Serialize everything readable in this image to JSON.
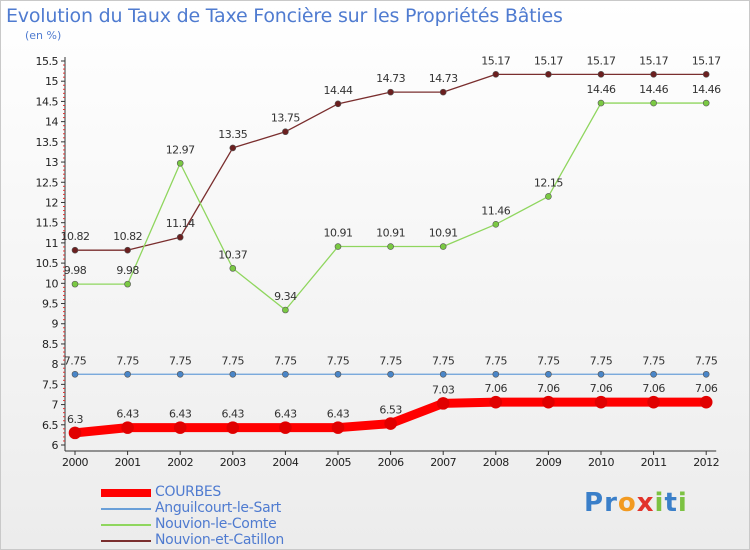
{
  "title": "Evolution du Taux de Taxe Foncière sur les Propriétés Bâties",
  "unit": "(en %)",
  "logo": {
    "letters": [
      "P",
      "r",
      "o",
      "x",
      "i",
      "t",
      "i"
    ],
    "colors": [
      "#3a7fc9",
      "#3a7fc9",
      "#f29a21",
      "#e2332b",
      "#7cc242",
      "#3a7fc9",
      "#7cc242"
    ]
  },
  "chart_data": {
    "type": "line",
    "title": "Evolution du Taux de Taxe Foncière sur les Propriétés Bâties",
    "ylabel": "(en %)",
    "xlabel": "",
    "x": [
      "2000",
      "2001",
      "2002",
      "2003",
      "2004",
      "2005",
      "2006",
      "2007",
      "2008",
      "2009",
      "2010",
      "2011",
      "2012"
    ],
    "ylim": [
      6,
      15.5
    ],
    "yticks": [
      "6",
      "6.5",
      "7",
      "7.5",
      "8",
      "8.5",
      "9",
      "9.5",
      "10",
      "10.5",
      "11",
      "11.5",
      "12",
      "12.5",
      "13",
      "13.5",
      "14",
      "14.5",
      "15",
      "15.5"
    ],
    "grid": false,
    "legend": "bottom-left",
    "series": [
      {
        "name": "COURBES",
        "color": "#ff0000",
        "marker": "#e00000",
        "values": [
          6.3,
          6.43,
          6.43,
          6.43,
          6.43,
          6.43,
          6.53,
          7.03,
          7.06,
          7.06,
          7.06,
          7.06,
          7.06
        ],
        "labels": [
          "6.3",
          "6.43",
          "6.43",
          "6.43",
          "6.43",
          "6.43",
          "6.53",
          "7.03",
          "7.06",
          "7.06",
          "7.06",
          "7.06",
          "7.06"
        ]
      },
      {
        "name": "Anguilcourt-le-Sart",
        "color": "#6a9fd8",
        "marker": "#4a86c8",
        "values": [
          7.75,
          7.75,
          7.75,
          7.75,
          7.75,
          7.75,
          7.75,
          7.75,
          7.75,
          7.75,
          7.75,
          7.75,
          7.75
        ],
        "labels": [
          "7.75",
          "7.75",
          "7.75",
          "7.75",
          "7.75",
          "7.75",
          "7.75",
          "7.75",
          "7.75",
          "7.75",
          "7.75",
          "7.75",
          "7.75"
        ]
      },
      {
        "name": "Nouvion-le-Comte",
        "color": "#8fd65e",
        "marker": "#7ac943",
        "values": [
          9.98,
          9.98,
          12.97,
          10.37,
          9.34,
          10.91,
          10.91,
          10.91,
          11.46,
          12.15,
          14.46,
          14.46,
          14.46
        ],
        "labels": [
          "9.98",
          "9.98",
          "12.97",
          "10.37",
          "9.34",
          "10.91",
          "10.91",
          "10.91",
          "11.46",
          "12.15",
          "14.46",
          "14.46",
          "14.46"
        ]
      },
      {
        "name": "Nouvion-et-Catillon",
        "color": "#7a2e2e",
        "marker": "#6b1f1f",
        "values": [
          10.82,
          10.82,
          11.14,
          13.35,
          13.75,
          14.44,
          14.73,
          14.73,
          15.17,
          15.17,
          15.17,
          15.17,
          15.17
        ],
        "labels": [
          "10.82",
          "10.82",
          "11.14",
          "13.35",
          "13.75",
          "14.44",
          "14.73",
          "14.73",
          "15.17",
          "15.17",
          "15.17",
          "15.17",
          "15.17"
        ]
      }
    ]
  }
}
